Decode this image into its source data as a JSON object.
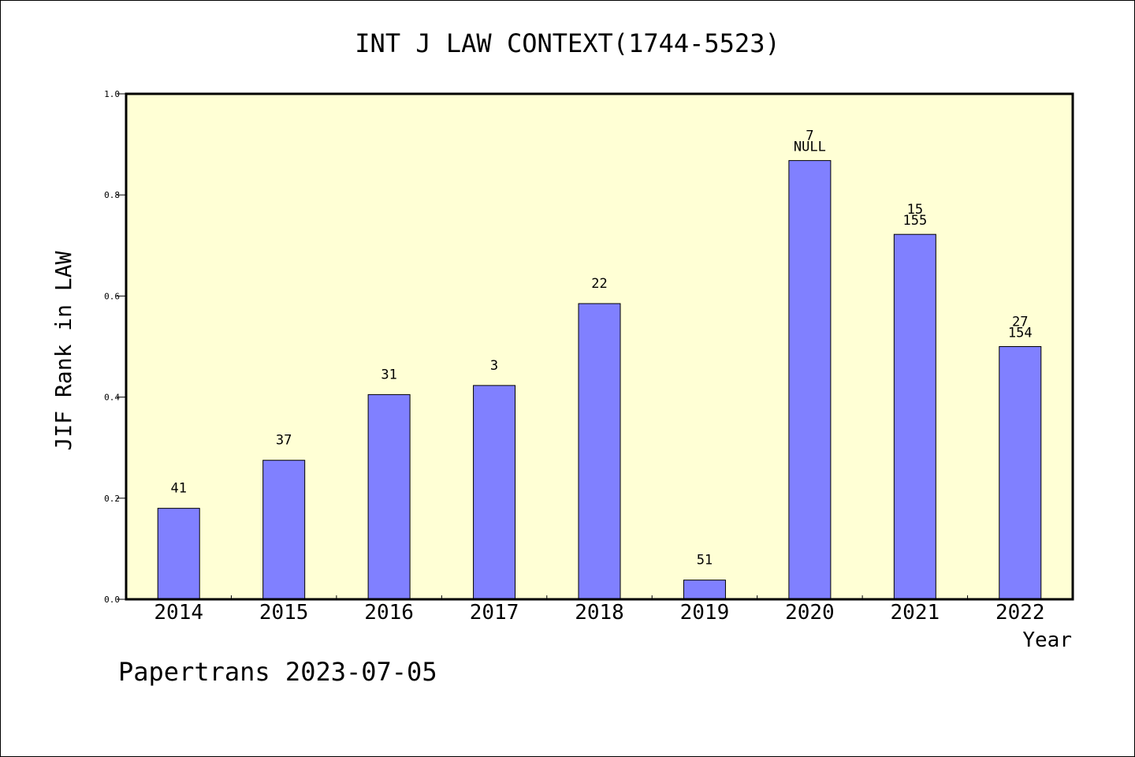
{
  "chart_data": {
    "type": "bar",
    "title": "INT J LAW CONTEXT(1744-5523)",
    "xlabel": "Year",
    "ylabel": "JIF Rank in LAW",
    "ylim": [
      0,
      1.0
    ],
    "yticks": [
      "0.0",
      "0.2",
      "0.4",
      "0.6",
      "0.8",
      "1.0"
    ],
    "categories": [
      "2014",
      "2015",
      "2016",
      "2017",
      "2018",
      "2019",
      "2020",
      "2021",
      "2022"
    ],
    "values": [
      0.18,
      0.275,
      0.405,
      0.423,
      0.585,
      0.038,
      0.868,
      0.722,
      0.5
    ],
    "labels": [
      [
        "41"
      ],
      [
        "37"
      ],
      [
        "31"
      ],
      [
        "3"
      ],
      [
        "22"
      ],
      [
        "51"
      ],
      [
        "7",
        "NULL"
      ],
      [
        "15",
        "155"
      ],
      [
        "27",
        "154"
      ]
    ],
    "bar_color": "#8080ff",
    "plot_background": "#ffffd5",
    "grid": false,
    "legend": "none"
  },
  "footer": {
    "text": "Papertrans 2023-07-05"
  }
}
